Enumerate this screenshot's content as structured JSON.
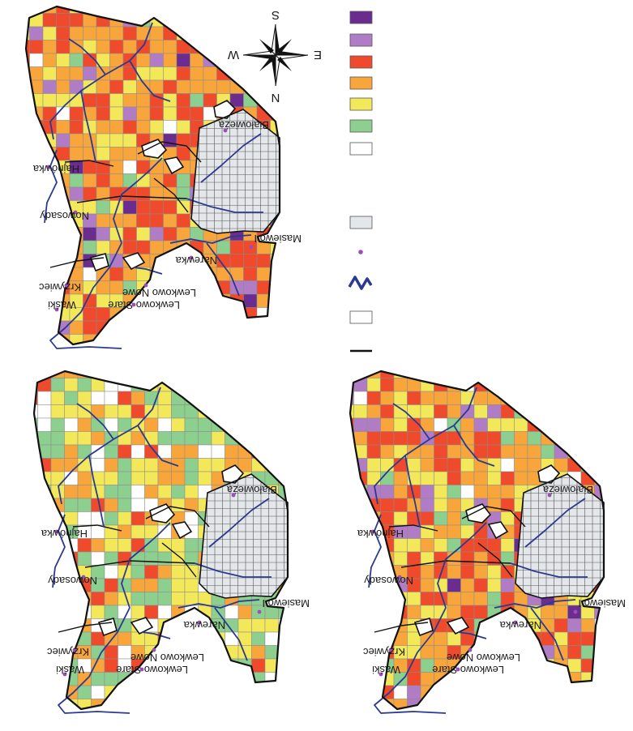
{
  "colors": {
    "dark_purple": "#6a2d8f",
    "light_purple": "#b07cc6",
    "red": "#ef4a2c",
    "orange": "#f8a63b",
    "yellow": "#f2e85a",
    "green": "#8ccf8e",
    "white": "#ffffff",
    "protected_gray": "#e4e7ea",
    "river": "#2b3a8f",
    "town_dot": "#9b4dbb",
    "border": "#111111"
  },
  "legend": {
    "classes": [
      {
        "name": "dark-purple-class",
        "color": "#6a2d8f"
      },
      {
        "name": "light-purple-class",
        "color": "#b07cc6"
      },
      {
        "name": "red-class",
        "color": "#ef4a2c"
      },
      {
        "name": "orange-class",
        "color": "#f8a63b"
      },
      {
        "name": "yellow-class",
        "color": "#f2e85a"
      },
      {
        "name": "green-class",
        "color": "#8ccf8e"
      },
      {
        "name": "white-class",
        "color": "#ffffff"
      }
    ],
    "symbols": [
      "protected-area",
      "settlement",
      "river",
      "grid-cell",
      "boundary"
    ]
  },
  "compass": {
    "n": "N",
    "s": "S",
    "e": "E",
    "w": "W"
  },
  "places": [
    "Białowieża",
    "Hajnówka",
    "Nowosady",
    "Narewka",
    "Masiewo I",
    "Krzywiec",
    "Lewkowo Nowe",
    "Lewkowo Stare",
    "Waśki"
  ],
  "maps": [
    {
      "name": "map-top-left",
      "palette": "high"
    },
    {
      "name": "map-bottom-left",
      "palette": "low"
    },
    {
      "name": "map-bottom-right",
      "palette": "mid"
    }
  ]
}
